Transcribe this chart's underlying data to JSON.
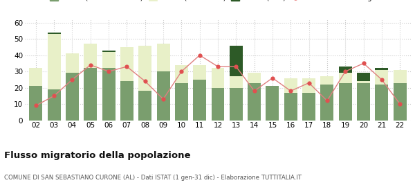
{
  "years": [
    "02",
    "03",
    "04",
    "05",
    "06",
    "07",
    "08",
    "09",
    "10",
    "11",
    "12",
    "13",
    "14",
    "15",
    "16",
    "17",
    "18",
    "19",
    "20",
    "21",
    "22"
  ],
  "iscritti_altri_comuni": [
    21,
    19,
    29,
    32,
    32,
    24,
    18,
    30,
    23,
    25,
    20,
    20,
    23,
    21,
    17,
    17,
    22,
    23,
    23,
    22,
    23
  ],
  "iscritti_estero": [
    11,
    34,
    12,
    15,
    10,
    21,
    28,
    17,
    11,
    9,
    12,
    7,
    6,
    0,
    9,
    9,
    5,
    6,
    1,
    9,
    8
  ],
  "iscritti_altri": [
    0,
    1,
    0,
    0,
    1,
    0,
    0,
    0,
    0,
    0,
    0,
    19,
    0,
    0,
    0,
    0,
    0,
    4,
    5,
    1,
    0
  ],
  "cancellati": [
    9,
    15,
    25,
    34,
    30,
    33,
    24,
    13,
    30,
    40,
    33,
    33,
    18,
    26,
    18,
    23,
    12,
    30,
    35,
    25,
    10
  ],
  "color_altri_comuni": "#7a9e6e",
  "color_estero": "#e8f0c8",
  "color_altri": "#2d5a27",
  "color_cancellati": "#e05050",
  "color_line": "#e08080",
  "ylim": [
    0,
    62
  ],
  "yticks": [
    0,
    10,
    20,
    30,
    40,
    50,
    60
  ],
  "title": "Flusso migratorio della popolazione",
  "subtitle": "COMUNE DI SAN SEBASTIANO CURONE (AL) - Dati ISTAT (1 gen-31 dic) - Elaborazione TUTTITALIA.IT",
  "background_color": "#ffffff",
  "grid_color": "#cccccc"
}
